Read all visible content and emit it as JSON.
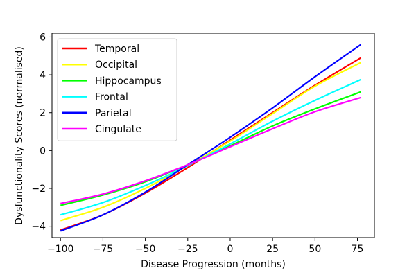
{
  "chart_data": {
    "type": "line",
    "title": "",
    "xlabel": "Disease Progression (months)",
    "ylabel": "Dysfunctionality Scores (normalised)",
    "xlim": [
      -105,
      85
    ],
    "ylim": [
      -4.6,
      6.2
    ],
    "x_ticks": [
      -100,
      -75,
      -50,
      -25,
      0,
      25,
      50,
      75
    ],
    "y_ticks": [
      -4,
      -2,
      0,
      2,
      4,
      6
    ],
    "x_tick_labels": [
      "−100",
      "−75",
      "−50",
      "−25",
      "0",
      "25",
      "50",
      "75"
    ],
    "y_tick_labels": [
      "−4",
      "−2",
      "0",
      "2",
      "4",
      "6"
    ],
    "grid": false,
    "legend_position": "top-left",
    "x": [
      -100,
      -75,
      -50,
      -25,
      0,
      25,
      50,
      77
    ],
    "series": [
      {
        "name": "Temporal",
        "color": "#ff0000",
        "values": [
          -4.2,
          -3.4,
          -2.25,
          -0.9,
          0.55,
          2.0,
          3.45,
          4.9
        ]
      },
      {
        "name": "Occipital",
        "color": "#ffff00",
        "values": [
          -3.7,
          -3.0,
          -2.0,
          -0.8,
          0.5,
          1.95,
          3.4,
          4.65
        ]
      },
      {
        "name": "Hippocampus",
        "color": "#00ff00",
        "values": [
          -2.9,
          -2.35,
          -1.65,
          -0.75,
          0.25,
          1.3,
          2.2,
          3.1
        ]
      },
      {
        "name": "Frontal",
        "color": "#00ffff",
        "values": [
          -3.4,
          -2.75,
          -1.85,
          -0.8,
          0.35,
          1.55,
          2.65,
          3.75
        ]
      },
      {
        "name": "Parietal",
        "color": "#0000ff",
        "values": [
          -4.25,
          -3.4,
          -2.2,
          -0.75,
          0.7,
          2.25,
          3.9,
          5.6
        ]
      },
      {
        "name": "Cingulate",
        "color": "#ff00ff",
        "values": [
          -2.8,
          -2.3,
          -1.6,
          -0.75,
          0.2,
          1.15,
          2.05,
          2.8
        ]
      }
    ]
  }
}
